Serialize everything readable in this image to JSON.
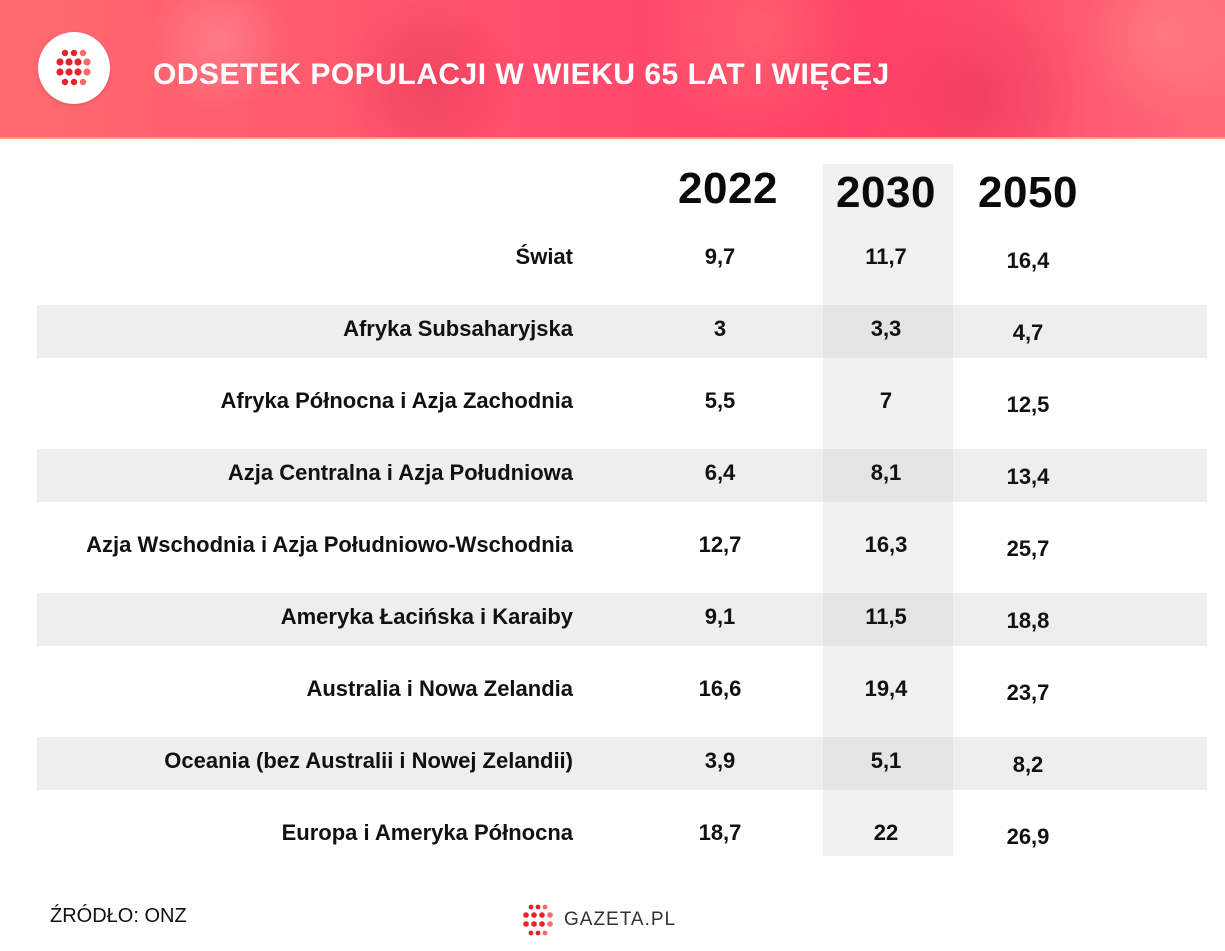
{
  "header": {
    "title": "ODSETEK POPULACJI W WIEKU 65 LAT I WIĘCEJ",
    "logo_icon": "gazeta-dots-icon",
    "colors": {
      "accent": "#ff4d6d",
      "dots_red": "#e8202a",
      "dots_pink": "#f76a6a"
    }
  },
  "chart_data": {
    "type": "table",
    "title": "ODSETEK POPULACJI W WIEKU 65 LAT I WIĘCEJ",
    "columns": [
      "2022",
      "2030",
      "2050"
    ],
    "highlighted_column": "2030",
    "rows": [
      {
        "label": "Świat",
        "values": [
          "9,7",
          "11,7",
          "16,4"
        ]
      },
      {
        "label": "Afryka Subsaharyjska",
        "values": [
          "3",
          "3,3",
          "4,7"
        ]
      },
      {
        "label": "Afryka Północna i Azja Zachodnia",
        "values": [
          "5,5",
          "7",
          "12,5"
        ]
      },
      {
        "label": "Azja Centralna i Azja Południowa",
        "values": [
          "6,4",
          "8,1",
          "13,4"
        ]
      },
      {
        "label": "Azja Wschodnia i Azja Południowo-Wschodnia",
        "values": [
          "12,7",
          "16,3",
          "25,7"
        ]
      },
      {
        "label": "Ameryka Łacińska i Karaiby",
        "values": [
          "9,1",
          "11,5",
          "18,8"
        ]
      },
      {
        "label": "Australia i Nowa Zelandia",
        "values": [
          "16,6",
          "19,4",
          "23,7"
        ]
      },
      {
        "label": "Oceania (bez Australii i Nowej Zelandii)",
        "values": [
          "3,9",
          "5,1",
          "8,2"
        ]
      },
      {
        "label": "Europa i Ameryka Północna",
        "values": [
          "18,7",
          "22",
          "26,9"
        ]
      }
    ]
  },
  "footer": {
    "source": "ŹRÓDŁO: ONZ",
    "brand": "GAZETA.PL"
  }
}
